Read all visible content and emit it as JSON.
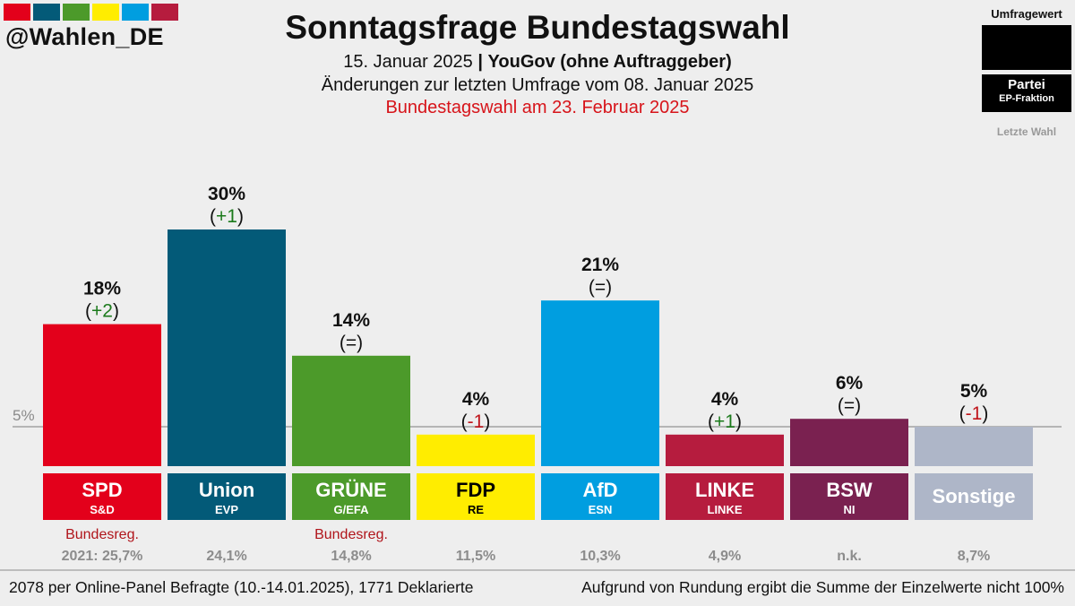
{
  "brand": {
    "handle": "@Wahlen_DE",
    "strip_colors": [
      "#e3001b",
      "#035a78",
      "#4c9a2a",
      "#ffed00",
      "#009ee0",
      "#b61c3e"
    ]
  },
  "header": {
    "title": "Sonntagsfrage Bundestagswahl",
    "date": "15. Januar 2025",
    "separator": "|",
    "pollster": "YouGov (ohne Auftraggeber)",
    "changes_note": "Änderungen zur letzten Umfrage vom 08. Januar 2025",
    "election_note": "Bundestagswahl am 23. Februar 2025"
  },
  "legend": {
    "head": "Umfragewert",
    "party": "Partei",
    "faction": "EP-Fraktion",
    "last": "Letzte Wahl"
  },
  "footer": {
    "left": "2078 per Online-Panel Befragte (10.-14.01.2025), 1771 Deklarierte",
    "right": "Aufgrund von Rundung ergibt die Summe der Einzelwerte nicht 100%"
  },
  "chart_data": {
    "type": "bar",
    "title": "Sonntagsfrage Bundestagswahl",
    "xlabel": "",
    "ylabel": "",
    "ylim": [
      0,
      30
    ],
    "grid": false,
    "threshold_line": {
      "value": 5,
      "label": "5%"
    },
    "categories": [
      "SPD",
      "Union",
      "GRÜNE",
      "FDP",
      "AfD",
      "LINKE",
      "BSW",
      "Sonstige"
    ],
    "values": [
      18,
      30,
      14,
      4,
      21,
      4,
      6,
      5
    ],
    "value_labels": [
      "18%",
      "30%",
      "14%",
      "4%",
      "21%",
      "4%",
      "6%",
      "5%"
    ],
    "changes": [
      "+2",
      "+1",
      "=",
      "-1",
      "=",
      "+1",
      "=",
      "-1"
    ],
    "change_colors": {
      "up": "#1b7a1b",
      "down": "#c0141a",
      "same": "#111111"
    },
    "factions": [
      "S&D",
      "EVP",
      "G/EFA",
      "RE",
      "ESN",
      "LINKE",
      "NI",
      ""
    ],
    "colors": [
      "#e3001b",
      "#035a78",
      "#4c9a2a",
      "#ffed00",
      "#009ee0",
      "#b61c3e",
      "#7a2150",
      "#aeb6c8"
    ],
    "label_text_colors": [
      "#ffffff",
      "#ffffff",
      "#ffffff",
      "#000000",
      "#ffffff",
      "#ffffff",
      "#ffffff",
      "#ffffff"
    ],
    "government_note": [
      "Bundesreg.",
      "",
      "Bundesreg.",
      "",
      "",
      "",
      "",
      ""
    ],
    "last_election": [
      "2021: 25,7%",
      "24,1%",
      "14,8%",
      "11,5%",
      "10,3%",
      "4,9%",
      "n.k.",
      "8,7%"
    ]
  }
}
